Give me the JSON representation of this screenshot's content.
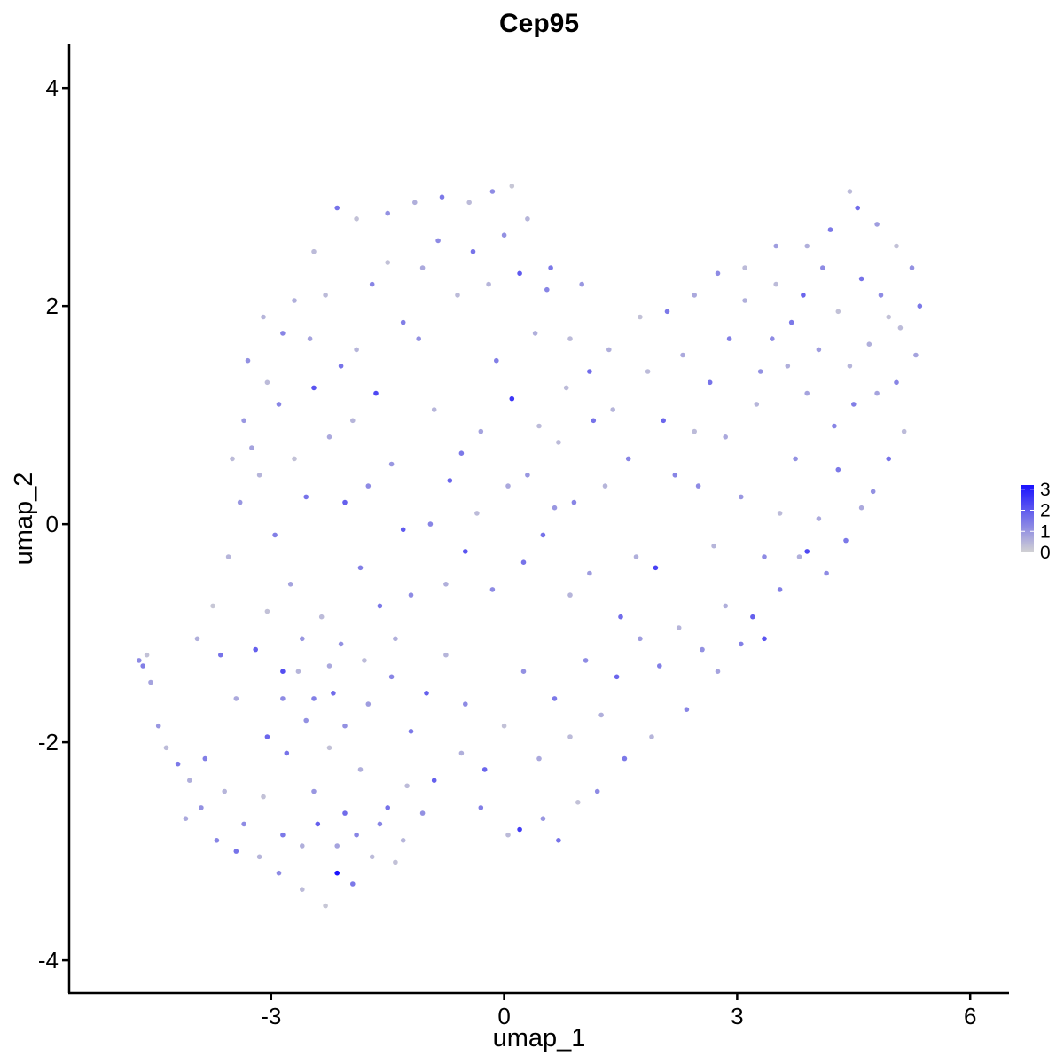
{
  "chart_data": {
    "type": "scatter",
    "title": "Cep95",
    "xlabel": "umap_1",
    "ylabel": "umap_2",
    "xlim": [
      -5.6,
      6.5
    ],
    "ylim": [
      -4.3,
      4.4
    ],
    "xticks": [
      -3,
      0,
      3,
      6
    ],
    "yticks": [
      -4,
      -2,
      0,
      2,
      4
    ],
    "xtick_labels": [
      "-3",
      "0",
      "3",
      "6"
    ],
    "ytick_labels": [
      "-4",
      "-2",
      "0",
      "2",
      "4"
    ],
    "grid": false,
    "legend": {
      "placement": "right",
      "type": "continuous colorbar",
      "ticks": [
        0,
        1,
        2,
        3
      ],
      "tick_labels": [
        "0",
        "1",
        "2",
        "3"
      ],
      "range": [
        0,
        3.2
      ],
      "low_color": "#d3d3d3",
      "high_color": "#1a12ff"
    },
    "points": [
      [
        -4.7,
        -1.25,
        1.2
      ],
      [
        -4.65,
        -1.3,
        1.4
      ],
      [
        -4.6,
        -1.2,
        0.3
      ],
      [
        -4.55,
        -1.45,
        0.8
      ],
      [
        -4.45,
        -1.85,
        1.0
      ],
      [
        -4.2,
        -2.2,
        1.5
      ],
      [
        -4.05,
        -2.35,
        0.6
      ],
      [
        -3.9,
        -2.6,
        1.1
      ],
      [
        -3.7,
        -2.9,
        1.3
      ],
      [
        -3.45,
        -3.0,
        1.6
      ],
      [
        -3.15,
        -3.05,
        0.5
      ],
      [
        -2.9,
        -3.2,
        1.2
      ],
      [
        -2.6,
        -3.35,
        0.4
      ],
      [
        -2.3,
        -3.5,
        0.2
      ],
      [
        -2.15,
        -3.2,
        3.2
      ],
      [
        -1.95,
        -3.3,
        1.5
      ],
      [
        -1.4,
        -3.1,
        0.3
      ],
      [
        -3.65,
        -1.2,
        1.6
      ],
      [
        -3.2,
        -1.15,
        1.9
      ],
      [
        -2.85,
        -1.35,
        2.2
      ],
      [
        -2.6,
        -1.05,
        1.0
      ],
      [
        -3.45,
        -1.6,
        0.7
      ],
      [
        -3.05,
        -1.95,
        1.8
      ],
      [
        -2.55,
        -1.8,
        1.1
      ],
      [
        -2.2,
        -1.55,
        1.7
      ],
      [
        -1.75,
        -1.65,
        0.9
      ],
      [
        -1.45,
        -1.4,
        1.3
      ],
      [
        -1.2,
        -1.9,
        1.5
      ],
      [
        -0.9,
        -2.35,
        1.9
      ],
      [
        -0.55,
        -2.1,
        0.6
      ],
      [
        -0.3,
        -2.6,
        1.4
      ],
      [
        0.05,
        -2.85,
        0.4
      ],
      [
        0.2,
        -2.8,
        2.5
      ],
      [
        0.5,
        -2.7,
        1.0
      ],
      [
        0.7,
        -2.9,
        1.6
      ],
      [
        0.95,
        -2.55,
        0.3
      ],
      [
        1.2,
        -2.45,
        1.2
      ],
      [
        1.55,
        -2.15,
        1.5
      ],
      [
        1.9,
        -1.95,
        0.5
      ],
      [
        2.35,
        -1.7,
        1.3
      ],
      [
        2.75,
        -1.35,
        0.8
      ],
      [
        3.2,
        -0.85,
        1.9
      ],
      [
        3.35,
        -1.05,
        2.1
      ],
      [
        3.55,
        -0.6,
        1.4
      ],
      [
        3.8,
        -0.3,
        0.6
      ],
      [
        3.9,
        -0.25,
        2.3
      ],
      [
        4.15,
        -0.45,
        1.2
      ],
      [
        4.4,
        -0.15,
        1.5
      ],
      [
        4.6,
        0.15,
        0.7
      ],
      [
        4.75,
        0.3,
        1.1
      ],
      [
        4.95,
        0.6,
        1.6
      ],
      [
        5.15,
        0.85,
        0.4
      ],
      [
        5.05,
        1.3,
        1.3
      ],
      [
        5.3,
        1.55,
        0.8
      ],
      [
        5.35,
        2.0,
        1.5
      ],
      [
        5.25,
        2.35,
        1.1
      ],
      [
        5.05,
        2.55,
        0.3
      ],
      [
        4.8,
        2.75,
        0.9
      ],
      [
        4.55,
        2.9,
        1.7
      ],
      [
        4.45,
        3.05,
        0.4
      ],
      [
        4.2,
        2.7,
        1.5
      ],
      [
        3.9,
        2.55,
        0.6
      ],
      [
        3.5,
        2.55,
        0.9
      ],
      [
        3.1,
        2.35,
        0.4
      ],
      [
        2.75,
        2.3,
        1.2
      ],
      [
        2.45,
        2.1,
        0.7
      ],
      [
        2.1,
        1.95,
        1.5
      ],
      [
        1.75,
        1.9,
        0.3
      ],
      [
        1.35,
        1.6,
        0.6
      ],
      [
        1.1,
        1.4,
        1.7
      ],
      [
        0.8,
        1.25,
        0.4
      ],
      [
        0.55,
        2.15,
        1.3
      ],
      [
        0.3,
        2.8,
        0.5
      ],
      [
        0.1,
        3.1,
        0.2
      ],
      [
        -0.15,
        3.05,
        1.2
      ],
      [
        -0.45,
        2.95,
        0.4
      ],
      [
        -0.8,
        3.0,
        1.5
      ],
      [
        -1.15,
        2.95,
        0.6
      ],
      [
        -1.5,
        2.85,
        1.1
      ],
      [
        -1.9,
        2.8,
        0.3
      ],
      [
        -2.15,
        2.9,
        1.6
      ],
      [
        -2.45,
        2.5,
        0.4
      ],
      [
        -2.7,
        2.05,
        0.6
      ],
      [
        -2.85,
        1.75,
        1.3
      ],
      [
        -3.05,
        1.3,
        0.4
      ],
      [
        -3.25,
        0.7,
        0.8
      ],
      [
        -3.4,
        0.2,
        1.0
      ],
      [
        -3.55,
        -0.3,
        0.5
      ],
      [
        -3.75,
        -0.75,
        0.2
      ],
      [
        -3.95,
        -1.05,
        0.6
      ],
      [
        -2.45,
        1.25,
        2.1
      ],
      [
        -2.25,
        0.8,
        0.7
      ],
      [
        -2.05,
        0.2,
        1.9
      ],
      [
        -1.85,
        -0.4,
        1.4
      ],
      [
        -1.65,
        1.2,
        2.3
      ],
      [
        -1.45,
        0.55,
        1.0
      ],
      [
        -1.3,
        -0.05,
        2.0
      ],
      [
        -1.1,
        1.7,
        1.1
      ],
      [
        -0.9,
        1.05,
        0.5
      ],
      [
        -0.7,
        0.4,
        1.8
      ],
      [
        -0.5,
        -0.25,
        2.1
      ],
      [
        -0.3,
        0.85,
        0.8
      ],
      [
        -0.1,
        1.5,
        1.4
      ],
      [
        0.1,
        1.15,
        2.6
      ],
      [
        0.3,
        0.45,
        1.0
      ],
      [
        0.5,
        -0.1,
        1.6
      ],
      [
        0.7,
        0.75,
        0.4
      ],
      [
        0.9,
        0.2,
        1.3
      ],
      [
        1.1,
        -0.45,
        0.9
      ],
      [
        1.3,
        0.35,
        0.5
      ],
      [
        1.5,
        -0.85,
        1.7
      ],
      [
        1.7,
        -0.3,
        0.6
      ],
      [
        1.95,
        -0.4,
        2.4
      ],
      [
        2.2,
        0.45,
        1.3
      ],
      [
        2.45,
        0.85,
        0.4
      ],
      [
        2.65,
        1.3,
        1.6
      ],
      [
        2.85,
        0.8,
        0.7
      ],
      [
        3.05,
        0.25,
        1.0
      ],
      [
        3.25,
        1.1,
        0.5
      ],
      [
        3.45,
        1.7,
        1.2
      ],
      [
        3.65,
        1.45,
        0.6
      ],
      [
        3.85,
        2.1,
        1.8
      ],
      [
        4.05,
        1.6,
        0.9
      ],
      [
        4.25,
        0.9,
        1.3
      ],
      [
        4.45,
        1.45,
        0.5
      ],
      [
        4.6,
        2.25,
        1.6
      ],
      [
        4.8,
        1.2,
        0.8
      ],
      [
        4.95,
        1.9,
        0.3
      ],
      [
        4.3,
        0.5,
        1.5
      ],
      [
        4.05,
        0.05,
        0.7
      ],
      [
        3.75,
        0.6,
        1.1
      ],
      [
        3.55,
        0.1,
        0.4
      ],
      [
        3.35,
        -0.3,
        1.2
      ],
      [
        -2.8,
        -2.1,
        1.6
      ],
      [
        -2.45,
        -2.45,
        1.0
      ],
      [
        -2.25,
        -2.05,
        0.3
      ],
      [
        -2.05,
        -2.65,
        1.7
      ],
      [
        -1.85,
        -2.25,
        0.6
      ],
      [
        -1.6,
        -2.75,
        1.3
      ],
      [
        -1.25,
        -2.4,
        0.4
      ],
      [
        -1.0,
        -1.55,
        1.9
      ],
      [
        -0.75,
        -1.2,
        0.5
      ],
      [
        -0.5,
        -1.65,
        1.2
      ],
      [
        -0.25,
        -2.25,
        1.8
      ],
      [
        0.0,
        -1.85,
        0.3
      ],
      [
        0.25,
        -1.35,
        1.1
      ],
      [
        0.45,
        -2.15,
        0.7
      ],
      [
        0.65,
        -1.6,
        1.5
      ],
      [
        0.85,
        -1.95,
        0.4
      ],
      [
        1.05,
        -1.25,
        1.2
      ],
      [
        1.25,
        -1.75,
        0.6
      ],
      [
        1.45,
        -1.4,
        1.8
      ],
      [
        1.75,
        -1.05,
        0.9
      ],
      [
        2.0,
        -1.3,
        1.4
      ],
      [
        2.25,
        -0.95,
        0.5
      ],
      [
        2.55,
        -1.15,
        1.1
      ],
      [
        2.85,
        -0.75,
        0.6
      ],
      [
        3.05,
        -1.1,
        1.4
      ],
      [
        -3.35,
        0.95,
        1.0
      ],
      [
        -3.15,
        0.45,
        0.5
      ],
      [
        -2.95,
        -0.1,
        1.4
      ],
      [
        -2.75,
        -0.55,
        0.8
      ],
      [
        -2.55,
        0.25,
        1.6
      ],
      [
        -2.35,
        -0.85,
        0.4
      ],
      [
        -2.1,
        -1.1,
        1.1
      ],
      [
        -1.9,
        1.6,
        0.5
      ],
      [
        -1.7,
        2.2,
        1.3
      ],
      [
        -1.5,
        2.4,
        0.3
      ],
      [
        -1.3,
        1.85,
        1.4
      ],
      [
        -1.05,
        2.35,
        0.7
      ],
      [
        -0.85,
        2.6,
        1.2
      ],
      [
        -0.6,
        2.1,
        0.4
      ],
      [
        -0.4,
        2.5,
        1.6
      ],
      [
        -0.2,
        2.2,
        0.5
      ],
      [
        0.0,
        2.65,
        1.1
      ],
      [
        0.2,
        2.3,
        2.0
      ],
      [
        0.4,
        1.75,
        0.6
      ],
      [
        0.6,
        2.35,
        1.5
      ],
      [
        0.85,
        1.7,
        0.4
      ],
      [
        1.0,
        2.2,
        1.0
      ],
      [
        -4.35,
        -2.05,
        0.4
      ],
      [
        -4.1,
        -2.7,
        0.7
      ],
      [
        -3.85,
        -2.15,
        1.4
      ],
      [
        -3.6,
        -2.45,
        0.5
      ],
      [
        -3.35,
        -2.75,
        1.2
      ],
      [
        -3.1,
        -2.5,
        0.3
      ],
      [
        -2.85,
        -2.85,
        1.5
      ],
      [
        -2.6,
        -2.95,
        0.6
      ],
      [
        -2.4,
        -2.75,
        1.9
      ],
      [
        -2.15,
        -2.95,
        0.8
      ],
      [
        -1.9,
        -2.85,
        1.3
      ],
      [
        -1.7,
        -3.05,
        0.4
      ],
      [
        -1.5,
        -2.6,
        1.6
      ],
      [
        -1.3,
        -2.9,
        0.5
      ],
      [
        -1.05,
        -2.65,
        1.1
      ],
      [
        1.15,
        0.95,
        1.6
      ],
      [
        1.4,
        1.05,
        0.5
      ],
      [
        1.6,
        0.6,
        1.3
      ],
      [
        1.85,
        1.4,
        0.4
      ],
      [
        2.05,
        0.95,
        1.8
      ],
      [
        2.3,
        1.55,
        0.7
      ],
      [
        2.5,
        0.35,
        1.2
      ],
      [
        2.7,
        -0.2,
        0.5
      ],
      [
        2.9,
        1.7,
        1.4
      ],
      [
        3.1,
        2.05,
        0.6
      ],
      [
        3.3,
        1.4,
        1.1
      ],
      [
        3.5,
        2.2,
        0.4
      ],
      [
        3.7,
        1.85,
        1.5
      ],
      [
        3.9,
        1.2,
        0.8
      ],
      [
        4.1,
        2.35,
        1.2
      ],
      [
        4.3,
        1.95,
        0.3
      ],
      [
        4.5,
        1.1,
        1.4
      ],
      [
        4.7,
        1.65,
        0.6
      ],
      [
        4.85,
        2.1,
        1.2
      ],
      [
        5.1,
        1.8,
        0.4
      ],
      [
        -0.95,
        0.0,
        1.3
      ],
      [
        -0.75,
        -0.55,
        0.6
      ],
      [
        -0.55,
        0.65,
        1.5
      ],
      [
        -0.35,
        0.1,
        0.4
      ],
      [
        -0.15,
        -0.6,
        1.2
      ],
      [
        0.05,
        0.35,
        0.7
      ],
      [
        0.25,
        -0.35,
        1.6
      ],
      [
        0.45,
        0.9,
        0.4
      ],
      [
        0.65,
        0.15,
        1.0
      ],
      [
        0.85,
        -0.65,
        0.5
      ],
      [
        -3.05,
        -0.8,
        0.3
      ],
      [
        -2.85,
        -1.6,
        1.2
      ],
      [
        -2.65,
        -1.35,
        0.5
      ],
      [
        -2.45,
        -1.6,
        1.4
      ],
      [
        -2.25,
        -1.3,
        0.7
      ],
      [
        -2.05,
        -1.85,
        1.1
      ],
      [
        -1.8,
        -1.25,
        0.4
      ],
      [
        -1.6,
        -0.75,
        1.5
      ],
      [
        -1.4,
        -1.05,
        0.6
      ],
      [
        -1.2,
        -0.65,
        1.2
      ],
      [
        -3.5,
        0.6,
        0.4
      ],
      [
        -3.3,
        1.5,
        1.1
      ],
      [
        -3.1,
        1.9,
        0.5
      ],
      [
        -2.9,
        1.1,
        1.3
      ],
      [
        -2.7,
        0.6,
        0.3
      ],
      [
        -2.5,
        1.7,
        0.8
      ],
      [
        -2.3,
        2.1,
        0.4
      ],
      [
        -2.1,
        1.45,
        1.6
      ],
      [
        -1.95,
        0.95,
        0.5
      ],
      [
        -1.75,
        0.35,
        1.2
      ]
    ]
  }
}
